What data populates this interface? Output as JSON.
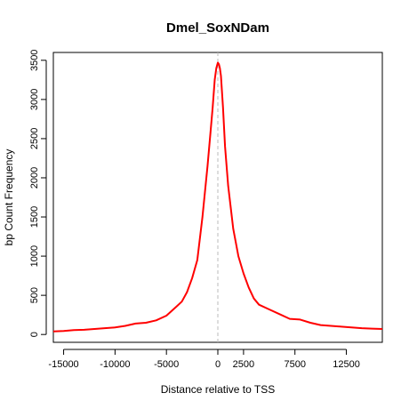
{
  "chart_data": {
    "type": "line",
    "title": "Dmel_SoxNDam",
    "xlabel": "Distance relative to TSS",
    "ylabel": "bp Count Frequency",
    "xlim": [
      -16000,
      16000
    ],
    "ylim": [
      -100,
      3600
    ],
    "x_ticks": [
      -15000,
      -10000,
      -5000,
      0,
      2500,
      7500,
      12500
    ],
    "x_tick_labels": [
      "-15000",
      "-10000",
      "-5000",
      "0",
      "2500",
      "7500",
      "12500"
    ],
    "y_ticks": [
      0,
      500,
      1000,
      1500,
      2000,
      2500,
      3000,
      3500
    ],
    "y_tick_labels": [
      "0",
      "500",
      "1000",
      "1500",
      "2000",
      "2500",
      "3000",
      "3500"
    ],
    "reference_line_x": 0,
    "grid": false,
    "series": [
      {
        "color": "#ff0000",
        "x": [
          -16000,
          -15000,
          -14000,
          -13000,
          -12000,
          -11000,
          -10000,
          -9000,
          -8000,
          -7000,
          -6000,
          -5000,
          -4000,
          -3500,
          -3000,
          -2500,
          -2000,
          -1500,
          -1000,
          -700,
          -500,
          -300,
          -150,
          0,
          100,
          200,
          300,
          500,
          700,
          1000,
          1500,
          2000,
          2500,
          3000,
          3500,
          4000,
          5000,
          6000,
          7000,
          8000,
          9000,
          10000,
          11000,
          12000,
          13000,
          14000,
          15000,
          16000
        ],
        "values": [
          40,
          45,
          55,
          60,
          70,
          80,
          90,
          110,
          140,
          150,
          180,
          240,
          360,
          420,
          540,
          720,
          950,
          1500,
          2150,
          2600,
          2900,
          3250,
          3400,
          3470,
          3450,
          3400,
          3300,
          2900,
          2400,
          1900,
          1350,
          1000,
          780,
          600,
          460,
          380,
          320,
          260,
          200,
          190,
          150,
          120,
          110,
          100,
          90,
          80,
          75,
          70
        ]
      }
    ],
    "colors": {
      "line": "#ff0000",
      "reference_line": "#bbbbbb",
      "axes": "#000000"
    }
  }
}
